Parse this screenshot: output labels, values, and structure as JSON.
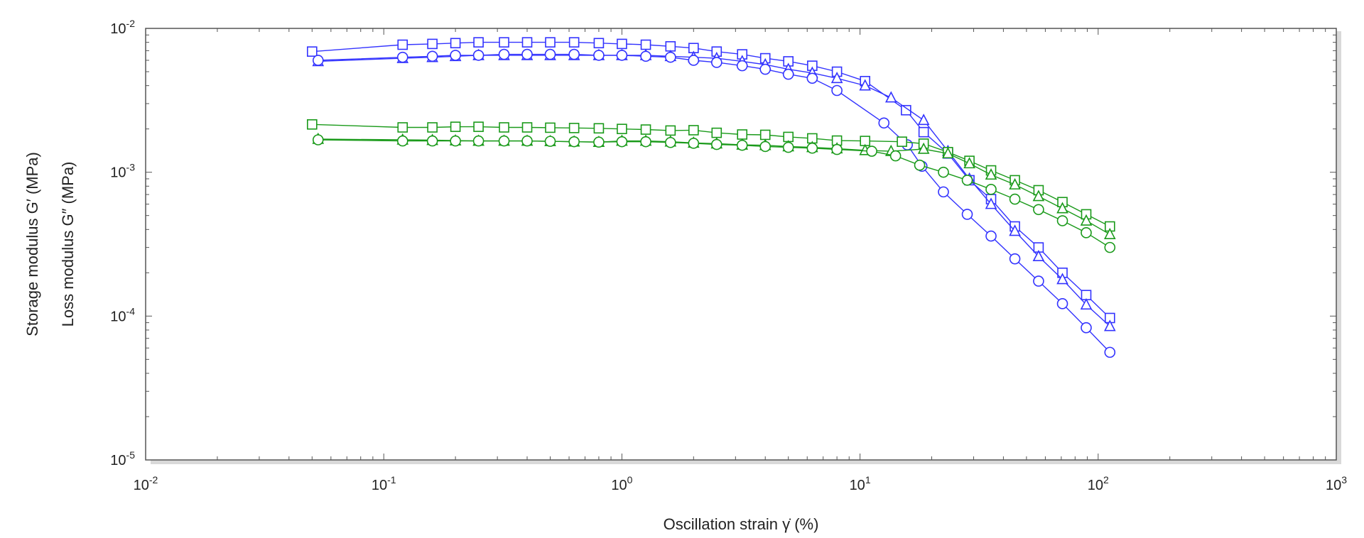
{
  "chart_data": {
    "type": "scatter",
    "xscale": "log",
    "yscale": "log",
    "xlim": [
      0.01,
      1000
    ],
    "ylim": [
      1e-05,
      0.01
    ],
    "xlabel": "Oscillation strain γ̇ (%)",
    "ylabel": {
      "storage": "Storage modulus G′ (MPa)",
      "loss": "Loss modulus G″ (MPa)"
    },
    "x_ticks": [
      {
        "base": "10",
        "exp": "-2"
      },
      {
        "base": "10",
        "exp": "-1"
      },
      {
        "base": "10",
        "exp": "0"
      },
      {
        "base": "10",
        "exp": "1"
      },
      {
        "base": "10",
        "exp": "2"
      },
      {
        "base": "10",
        "exp": "3"
      }
    ],
    "y_ticks": [
      {
        "base": "10",
        "exp": "-5"
      },
      {
        "base": "10",
        "exp": "-4"
      },
      {
        "base": "10",
        "exp": "-3"
      },
      {
        "base": "10",
        "exp": "-2"
      }
    ],
    "colors": {
      "storage": "#3333ff",
      "loss": "#1a9a1a"
    },
    "grid": false,
    "series": [
      {
        "group": "storage",
        "marker": "square",
        "x": [
          0.05,
          0.12,
          0.16,
          0.2,
          0.25,
          0.32,
          0.4,
          0.5,
          0.63,
          0.8,
          1.0,
          1.26,
          1.6,
          2.0,
          2.5,
          3.2,
          4.0,
          5.0,
          6.3,
          8.0,
          10.5,
          15.6,
          18.5,
          23.4,
          28.8,
          35.5,
          44.7,
          56.2,
          70.8,
          89.1,
          112
        ],
        "y": [
          0.0069,
          0.0077,
          0.0078,
          0.0079,
          0.008,
          0.008,
          0.008,
          0.008,
          0.008,
          0.0079,
          0.0078,
          0.0077,
          0.0075,
          0.0073,
          0.0069,
          0.0066,
          0.0062,
          0.0059,
          0.0055,
          0.005,
          0.0043,
          0.0027,
          0.0019,
          0.00135,
          0.00088,
          0.00065,
          0.00042,
          0.0003,
          0.0002,
          0.00014,
          9.7e-05
        ]
      },
      {
        "group": "storage",
        "marker": "triangle",
        "x": [
          0.053,
          0.12,
          0.16,
          0.2,
          0.25,
          0.32,
          0.4,
          0.5,
          0.63,
          0.8,
          1.0,
          1.26,
          1.6,
          2.0,
          2.5,
          3.2,
          4.0,
          5.0,
          6.3,
          8.0,
          10.5,
          13.5,
          18.5,
          23.4,
          28.8,
          35.5,
          44.7,
          56.2,
          70.8,
          89.1,
          112
        ],
        "y": [
          0.0059,
          0.0062,
          0.0063,
          0.0064,
          0.0065,
          0.0065,
          0.0065,
          0.0065,
          0.0065,
          0.0065,
          0.0065,
          0.0065,
          0.0064,
          0.0063,
          0.0062,
          0.0059,
          0.0056,
          0.0052,
          0.0049,
          0.0045,
          0.004,
          0.0033,
          0.0023,
          0.0014,
          0.0009,
          0.0006,
          0.00039,
          0.00026,
          0.00018,
          0.00012,
          8.5e-05
        ]
      },
      {
        "group": "storage",
        "marker": "circle",
        "x": [
          0.053,
          0.12,
          0.16,
          0.2,
          0.25,
          0.32,
          0.4,
          0.5,
          0.63,
          0.8,
          1.0,
          1.26,
          1.6,
          2.0,
          2.5,
          3.2,
          4.0,
          5.0,
          6.3,
          8.0,
          12.6,
          15.8,
          18.2,
          22.4,
          28.2,
          35.5,
          44.7,
          56.2,
          70.8,
          89.1,
          112
        ],
        "y": [
          0.006,
          0.0063,
          0.0064,
          0.0065,
          0.0065,
          0.0066,
          0.0066,
          0.0066,
          0.0066,
          0.0065,
          0.0065,
          0.0064,
          0.0063,
          0.006,
          0.0058,
          0.0055,
          0.0052,
          0.0048,
          0.0045,
          0.0037,
          0.0022,
          0.00155,
          0.0011,
          0.00073,
          0.00051,
          0.00036,
          0.00025,
          0.000175,
          0.000122,
          8.3e-05,
          5.6e-05
        ]
      },
      {
        "group": "loss",
        "marker": "square",
        "x": [
          0.05,
          0.12,
          0.16,
          0.2,
          0.25,
          0.32,
          0.4,
          0.5,
          0.63,
          0.8,
          1.0,
          1.26,
          1.6,
          2.0,
          2.5,
          3.2,
          4.0,
          5.0,
          6.3,
          8.0,
          10.5,
          15.0,
          18.5,
          23.4,
          28.8,
          35.5,
          44.7,
          56.2,
          70.8,
          89.1,
          112
        ],
        "y": [
          0.00215,
          0.00205,
          0.00205,
          0.00207,
          0.00207,
          0.00205,
          0.00205,
          0.00204,
          0.00203,
          0.00202,
          0.002,
          0.00198,
          0.00195,
          0.00196,
          0.00188,
          0.00183,
          0.00182,
          0.00176,
          0.00172,
          0.00166,
          0.00165,
          0.00163,
          0.00158,
          0.00138,
          0.0012,
          0.00103,
          0.00088,
          0.00075,
          0.00062,
          0.00051,
          0.00042
        ]
      },
      {
        "group": "loss",
        "marker": "triangle",
        "x": [
          0.053,
          0.12,
          0.16,
          0.2,
          0.25,
          0.32,
          0.4,
          0.5,
          0.63,
          0.8,
          1.0,
          1.26,
          1.6,
          2.0,
          2.5,
          3.2,
          4.0,
          5.0,
          6.3,
          8.0,
          10.5,
          13.5,
          18.5,
          23.4,
          28.8,
          35.5,
          44.7,
          56.2,
          70.8,
          89.1,
          112
        ],
        "y": [
          0.0017,
          0.00168,
          0.00167,
          0.00166,
          0.00165,
          0.00165,
          0.00165,
          0.00164,
          0.00163,
          0.00162,
          0.00165,
          0.00165,
          0.00163,
          0.0016,
          0.00158,
          0.00155,
          0.00154,
          0.00151,
          0.00149,
          0.00146,
          0.00142,
          0.0014,
          0.00145,
          0.00135,
          0.00115,
          0.00096,
          0.00082,
          0.00068,
          0.00056,
          0.00046,
          0.00037
        ]
      },
      {
        "group": "loss",
        "marker": "circle",
        "x": [
          0.053,
          0.12,
          0.16,
          0.2,
          0.25,
          0.32,
          0.4,
          0.5,
          0.63,
          0.8,
          1.0,
          1.26,
          1.6,
          2.0,
          2.5,
          3.2,
          4.0,
          5.0,
          6.3,
          8.0,
          11.2,
          14.1,
          17.8,
          22.4,
          28.2,
          35.5,
          44.7,
          56.2,
          70.8,
          89.1,
          112
        ],
        "y": [
          0.00168,
          0.00165,
          0.00165,
          0.00165,
          0.00165,
          0.00165,
          0.00165,
          0.00164,
          0.00163,
          0.00162,
          0.00163,
          0.00163,
          0.00161,
          0.00159,
          0.00156,
          0.00154,
          0.00151,
          0.00149,
          0.00147,
          0.00144,
          0.0014,
          0.0013,
          0.00112,
          0.001,
          0.00088,
          0.00076,
          0.00065,
          0.00055,
          0.00046,
          0.00038,
          0.0003
        ]
      }
    ]
  }
}
